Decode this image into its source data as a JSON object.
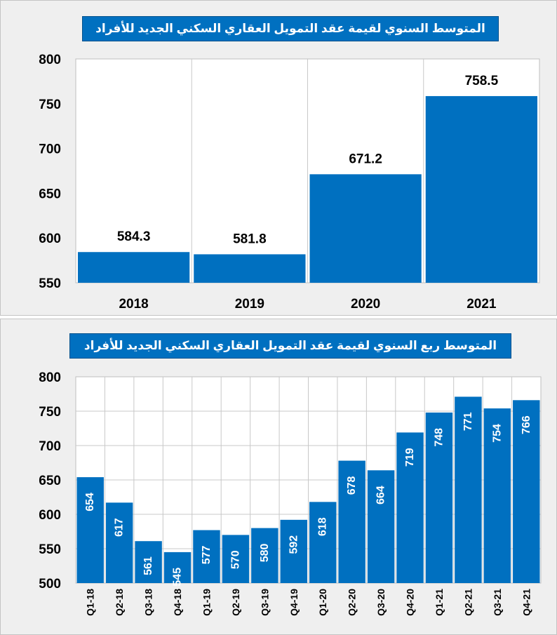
{
  "colors": {
    "bar": "#0070c0",
    "grid": "#c8c8c8",
    "panel_bg": "#efefef",
    "plot_bg": "#ffffff"
  },
  "chart_data": [
    {
      "type": "bar",
      "title": "المتوسط السنوي لقيمة عقد التمويل العقاري السكني الجديد للأفراد",
      "categories": [
        "2018",
        "2019",
        "2020",
        "2021"
      ],
      "values": [
        584.3,
        581.8,
        671.2,
        758.5
      ],
      "value_labels": [
        "584.3",
        "581.8",
        "671.2",
        "758.5"
      ],
      "yticks": [
        550,
        600,
        650,
        700,
        750,
        800
      ],
      "ylim": [
        550,
        800
      ],
      "grid": "vertical",
      "xlabel": "",
      "ylabel": ""
    },
    {
      "type": "bar",
      "title": "المتوسط ربع السنوي لقيمة عقد التمويل العقاري السكني الجديد للأفراد",
      "categories": [
        "Q1-18",
        "Q2-18",
        "Q3-18",
        "Q4-18",
        "Q1-19",
        "Q2-19",
        "Q3-19",
        "Q4-19",
        "Q1-20",
        "Q2-20",
        "Q3-20",
        "Q4-20",
        "Q1-21",
        "Q2-21",
        "Q3-21",
        "Q4-21"
      ],
      "values": [
        654,
        617,
        561,
        545,
        577,
        570,
        580,
        592,
        618,
        678,
        664,
        719,
        748,
        771,
        754,
        766
      ],
      "yticks": [
        500,
        550,
        600,
        650,
        700,
        750,
        800
      ],
      "ylim": [
        500,
        800
      ],
      "grid": "both",
      "xlabel": "",
      "ylabel": ""
    }
  ]
}
